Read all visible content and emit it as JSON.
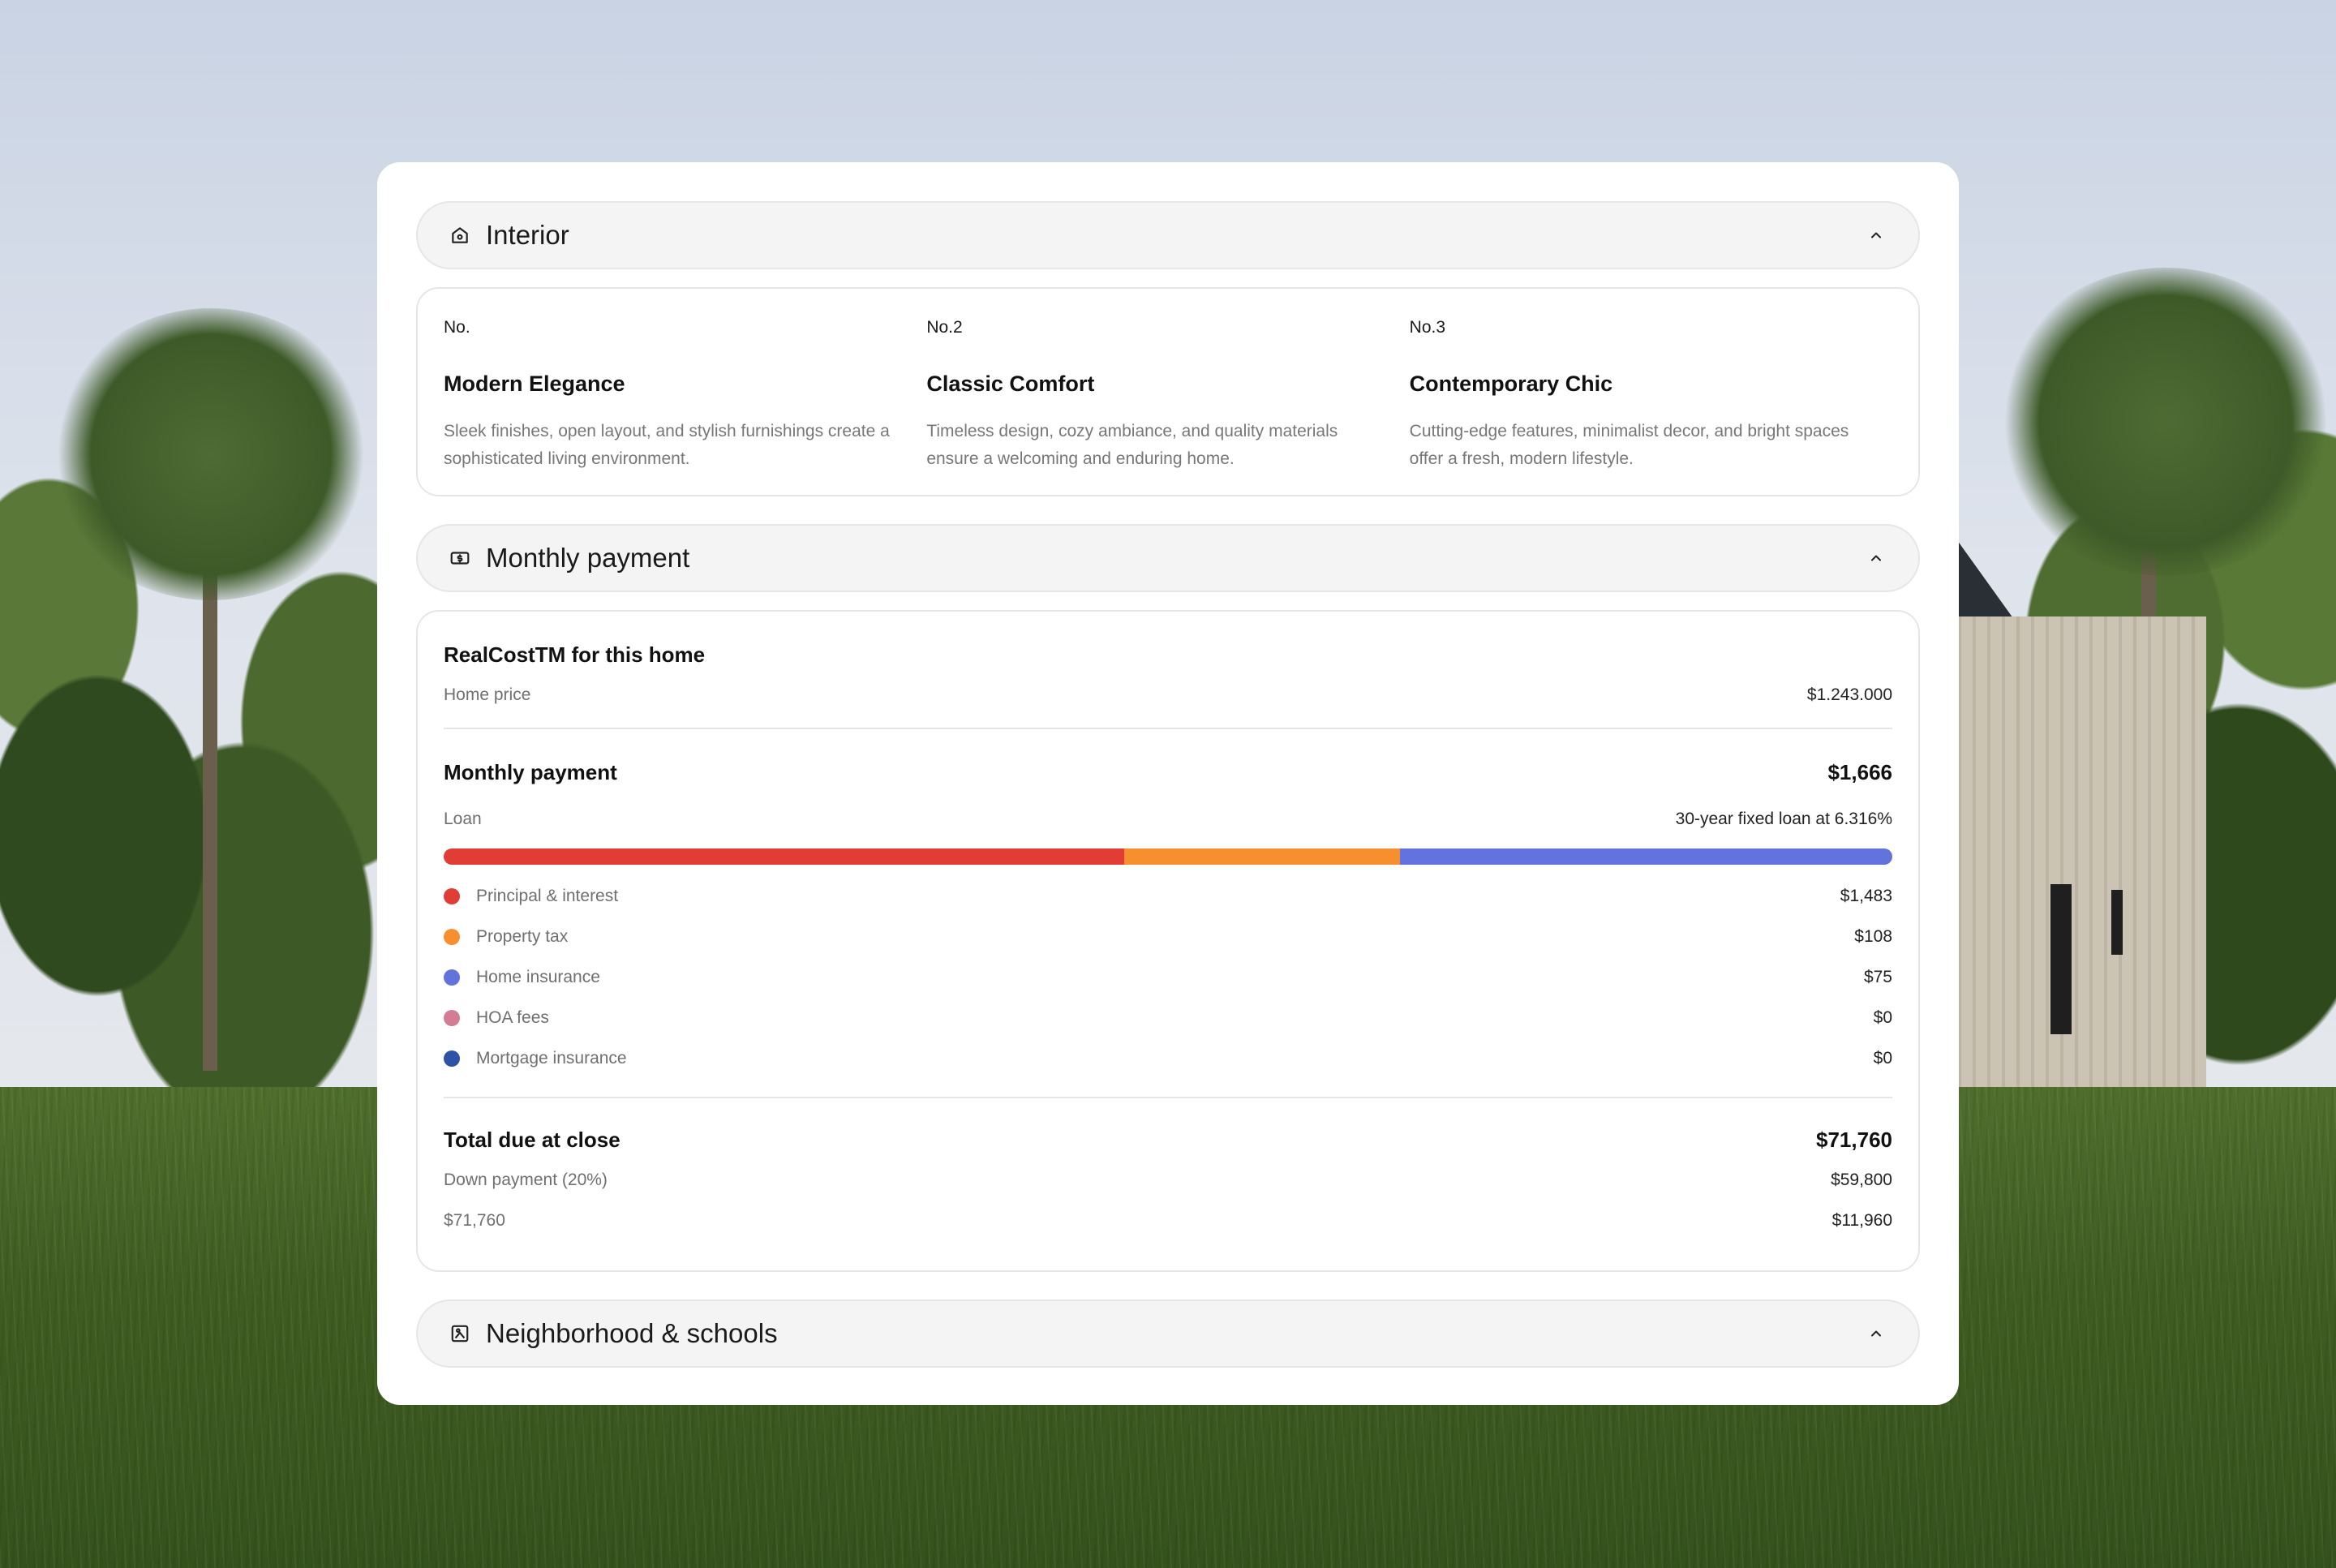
{
  "interior": {
    "title": "Interior",
    "items": [
      {
        "no": "No.",
        "title": "Modern Elegance",
        "desc": "Sleek finishes, open layout, and stylish furnishings create a sophisticated living environment."
      },
      {
        "no": "No.2",
        "title": "Classic Comfort",
        "desc": "Timeless design, cozy ambiance, and quality materials ensure a welcoming and enduring home."
      },
      {
        "no": "No.3",
        "title": "Contemporary Chic",
        "desc": "Cutting-edge features, minimalist decor, and bright spaces offer a fresh, modern lifestyle."
      }
    ]
  },
  "monthly": {
    "title": "Monthly payment",
    "realcost_title": "RealCostTM for this home",
    "home_price_label": "Home price",
    "home_price_value": "$1.243.000",
    "payment_label": "Monthly payment",
    "payment_value": "$1,666",
    "loan_label": "Loan",
    "loan_value": "30-year fixed loan at 6.316%",
    "breakdown": [
      {
        "label": "Principal & interest",
        "value": "$1,483",
        "amount": 1483,
        "color": "#e23c36"
      },
      {
        "label": "Property tax",
        "value": "$108",
        "amount": 108,
        "color": "#f78f2e"
      },
      {
        "label": "Home insurance",
        "value": "$75",
        "amount": 75,
        "color": "#6273de"
      },
      {
        "label": "HOA fees",
        "value": "$0",
        "amount": 0,
        "color": "#d37c94"
      },
      {
        "label": "Mortgage insurance",
        "value": "$0",
        "amount": 0,
        "color": "#2d52a8"
      }
    ],
    "bar_fractions": [
      0.47,
      0.19,
      0.34
    ],
    "close_label": "Total due at close",
    "close_value": "$71,760",
    "down_label": "Down payment (20%)",
    "down_value": "$59,800",
    "other_label": "$71,760",
    "other_value": "$11,960"
  },
  "neighborhood": {
    "title": "Neighborhood & schools"
  },
  "icons": {
    "interior": "home-icon",
    "monthly": "money-icon",
    "neighborhood": "map-icon",
    "chevron": "chevron-up-icon"
  }
}
